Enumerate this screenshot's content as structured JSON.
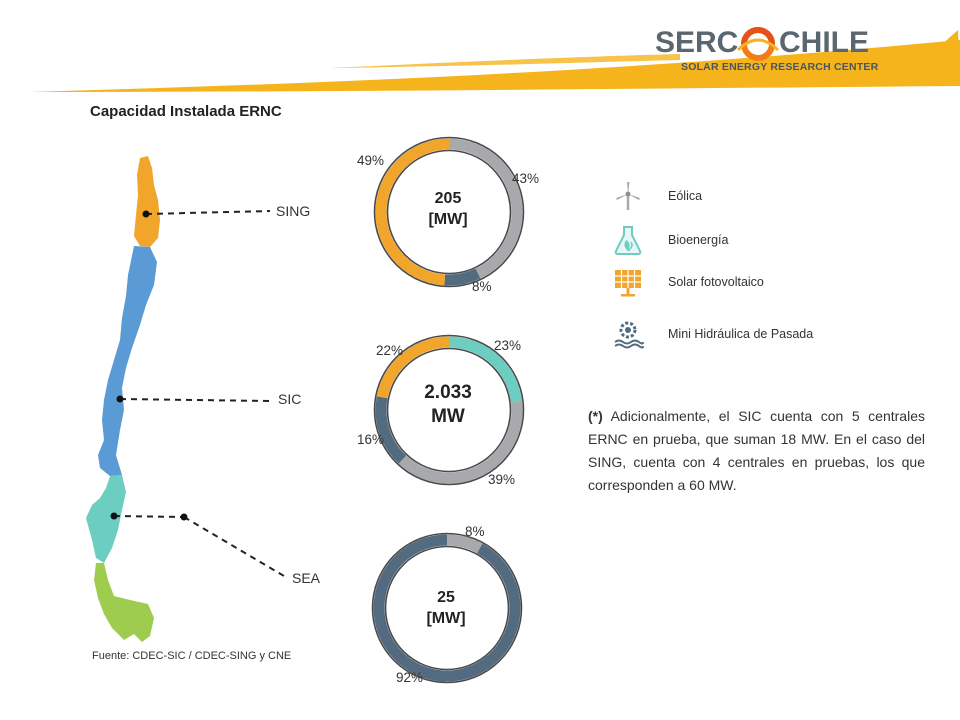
{
  "title": "Capacidad Instalada ERNC",
  "logo": {
    "word1": "SERC",
    "word2": "CHILE",
    "subtitle": "SOLAR ENERGY RESEARCH CENTER"
  },
  "colors": {
    "eolica": "#a7a9ac",
    "bioenergia": "#6ccdc1",
    "solar": "#f2a52b",
    "hidraulica": "#536b80",
    "swoosh": "#f5b41c",
    "map_sing": "#f2a52b",
    "map_sic": "#5b9bd5",
    "map_sea_north": "#6ccdc1",
    "map_sea_south": "#9dcc4e"
  },
  "legend": [
    {
      "label": "Eólica",
      "icon": "wind-turbine-icon"
    },
    {
      "label": "Bioenergía",
      "icon": "flask-leaf-icon"
    },
    {
      "label": "Solar fotovoltaico",
      "icon": "solar-panel-icon"
    },
    {
      "label": "Mini Hidráulica de Pasada",
      "icon": "water-wheel-icon"
    }
  ],
  "map_labels": [
    "SING",
    "SIC",
    "SEA"
  ],
  "source": "Fuente: CDEC-SIC / CDEC-SING y CNE",
  "footnote": {
    "marker": "(*)",
    "text": " Adicionalmente, el SIC cuenta con 5 centrales ERNC en prueba, que suman 18 MW. En el caso del SING, cuenta con 4 centrales en pruebas, los que corresponden a 60 MW."
  },
  "chart_data": [
    {
      "type": "pie",
      "system": "SING",
      "center_line1": "205",
      "center_line2": "[MW]",
      "slices": [
        {
          "category": "eolica",
          "value": 43,
          "label": "43%"
        },
        {
          "category": "hidraulica",
          "value": 8,
          "label": "8%"
        },
        {
          "category": "solar",
          "value": 49,
          "label": "49%"
        }
      ]
    },
    {
      "type": "pie",
      "system": "SIC",
      "center_line1": "2.033",
      "center_line2": "MW",
      "slices": [
        {
          "category": "bioenergia",
          "value": 23,
          "label": "23%"
        },
        {
          "category": "eolica",
          "value": 39,
          "label": "39%"
        },
        {
          "category": "hidraulica",
          "value": 16,
          "label": "16%"
        },
        {
          "category": "solar",
          "value": 22,
          "label": "22%"
        }
      ]
    },
    {
      "type": "pie",
      "system": "SEA",
      "center_line1": "25",
      "center_line2": "[MW]",
      "slices": [
        {
          "category": "eolica",
          "value": 8,
          "label": "8%"
        },
        {
          "category": "hidraulica",
          "value": 92,
          "label": "92%"
        }
      ]
    }
  ]
}
